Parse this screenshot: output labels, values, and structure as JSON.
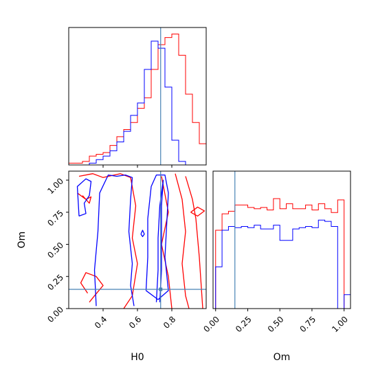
{
  "chart_data": {
    "type": "corner",
    "parameters": [
      "H0",
      "Om"
    ],
    "truth": {
      "H0": 0.735,
      "Om": 0.15
    },
    "colors": {
      "red": "#ff0000",
      "blue": "#0000ff",
      "truth": "#4682b4"
    },
    "panels": {
      "h0_hist": {
        "type": "step-histogram",
        "xlim": [
          0.2,
          1.0
        ],
        "edges": [
          0.2,
          0.24,
          0.28,
          0.32,
          0.36,
          0.4,
          0.44,
          0.48,
          0.52,
          0.56,
          0.6,
          0.64,
          0.68,
          0.72,
          0.76,
          0.8,
          0.84,
          0.88,
          0.92,
          0.96,
          1.0
        ],
        "series": [
          {
            "color": "red",
            "values": [
              1,
              1,
              2,
              5,
              6,
              7,
              11,
              16,
              20,
              24,
              32,
              38,
              54,
              68,
              72,
              74,
              62,
              40,
              24,
              12
            ]
          },
          {
            "color": "blue",
            "values": [
              0,
              0,
              0,
              1,
              3,
              5,
              8,
              13,
              19,
              28,
              35,
              54,
              70,
              66,
              44,
              14,
              2,
              0,
              0,
              0
            ]
          }
        ]
      },
      "om_hist": {
        "type": "step-histogram",
        "xlim": [
          -0.02,
          1.05
        ],
        "ticks": [
          "0.00",
          "0.25",
          "0.50",
          "0.75",
          "1.00"
        ],
        "edges": [
          0.0,
          0.05,
          0.1,
          0.15,
          0.2,
          0.25,
          0.3,
          0.35,
          0.4,
          0.45,
          0.5,
          0.55,
          0.6,
          0.65,
          0.7,
          0.75,
          0.8,
          0.85,
          0.9,
          0.95,
          1.0,
          1.05
        ],
        "series": [
          {
            "color": "red",
            "values": [
              62,
              75,
              77,
              82,
              82,
              80,
              79,
              80,
              78,
              87,
              79,
              83,
              79,
              79,
              82,
              78,
              83,
              79,
              76,
              86,
              0
            ]
          },
          {
            "color": "blue",
            "values": [
              33,
              62,
              65,
              64,
              65,
              64,
              66,
              63,
              63,
              66,
              54,
              54,
              63,
              64,
              65,
              64,
              70,
              69,
              65,
              0,
              11
            ]
          }
        ]
      },
      "joint": {
        "type": "contour",
        "xlim": [
          0.2,
          1.0
        ],
        "ylim": [
          0.0,
          1.07
        ],
        "xticks": [
          "0.4",
          "0.6",
          "0.8"
        ],
        "yticks": [
          "0.00",
          "0.25",
          "0.50",
          "0.75",
          "1.00"
        ],
        "contours": [
          {
            "color": "red",
            "points": [
              [
                0.26,
                1.03
              ],
              [
                0.34,
                1.05
              ],
              [
                0.4,
                1.02
              ],
              [
                0.5,
                1.05
              ],
              [
                0.56,
                1.02
              ],
              [
                0.59,
                0.8
              ],
              [
                0.57,
                0.55
              ],
              [
                0.6,
                0.35
              ],
              [
                0.57,
                0.1
              ],
              [
                0.52,
                0.0
              ]
            ]
          },
          {
            "color": "red",
            "points": [
              [
                0.25,
                0.9
              ],
              [
                0.3,
                0.85
              ],
              [
                0.33,
                0.87
              ],
              [
                0.32,
                0.82
              ],
              [
                0.28,
                0.88
              ]
            ]
          },
          {
            "color": "red",
            "points": [
              [
                0.31,
                0.12
              ],
              [
                0.27,
                0.2
              ],
              [
                0.3,
                0.28
              ],
              [
                0.36,
                0.25
              ],
              [
                0.4,
                0.18
              ],
              [
                0.35,
                0.1
              ],
              [
                0.32,
                0.05
              ]
            ]
          },
          {
            "color": "red",
            "points": [
              [
                0.74,
                1.03
              ],
              [
                0.78,
                0.75
              ],
              [
                0.74,
                0.5
              ],
              [
                0.78,
                0.25
              ],
              [
                0.8,
                0.0
              ]
            ]
          },
          {
            "color": "red",
            "points": [
              [
                0.82,
                1.05
              ],
              [
                0.86,
                0.85
              ],
              [
                0.88,
                0.6
              ],
              [
                0.86,
                0.35
              ],
              [
                0.88,
                0.1
              ],
              [
                0.9,
                0.0
              ]
            ]
          },
          {
            "color": "red",
            "points": [
              [
                0.88,
                1.03
              ],
              [
                0.92,
                0.85
              ],
              [
                0.94,
                0.7
              ],
              [
                0.96,
                0.4
              ],
              [
                0.97,
                0.2
              ],
              [
                0.98,
                0.0
              ]
            ]
          },
          {
            "color": "red",
            "points": [
              [
                0.91,
                0.75
              ],
              [
                0.95,
                0.72
              ],
              [
                0.99,
                0.76
              ],
              [
                0.95,
                0.79
              ],
              [
                0.91,
                0.75
              ]
            ]
          },
          {
            "color": "blue",
            "points": [
              [
                0.26,
                0.72
              ],
              [
                0.25,
                0.95
              ],
              [
                0.3,
                1.01
              ],
              [
                0.33,
                0.99
              ],
              [
                0.32,
                0.88
              ],
              [
                0.29,
                0.82
              ],
              [
                0.3,
                0.74
              ],
              [
                0.26,
                0.72
              ]
            ]
          },
          {
            "color": "blue",
            "points": [
              [
                0.36,
                0.02
              ],
              [
                0.35,
                0.3
              ],
              [
                0.37,
                0.6
              ],
              [
                0.38,
                0.9
              ],
              [
                0.43,
                1.04
              ],
              [
                0.48,
                1.03
              ],
              [
                0.53,
                1.04
              ],
              [
                0.57,
                1.02
              ],
              [
                0.56,
                0.85
              ],
              [
                0.55,
                0.6
              ],
              [
                0.57,
                0.35
              ],
              [
                0.56,
                0.18
              ],
              [
                0.58,
                0.02
              ]
            ]
          },
          {
            "color": "blue",
            "points": [
              [
                0.65,
                0.14
              ],
              [
                0.66,
                0.4
              ],
              [
                0.66,
                0.7
              ],
              [
                0.68,
                0.95
              ],
              [
                0.71,
                1.04
              ],
              [
                0.76,
                1.04
              ],
              [
                0.78,
                0.9
              ],
              [
                0.77,
                0.65
              ],
              [
                0.76,
                0.4
              ],
              [
                0.78,
                0.14
              ],
              [
                0.72,
                0.07
              ],
              [
                0.65,
                0.14
              ]
            ]
          },
          {
            "color": "blue",
            "points": [
              [
                0.71,
                0.05
              ],
              [
                0.72,
                0.3
              ],
              [
                0.72,
                0.55
              ],
              [
                0.73,
                0.8
              ],
              [
                0.75,
                1.0
              ],
              [
                0.74,
                0.8
              ],
              [
                0.74,
                0.55
              ],
              [
                0.74,
                0.3
              ],
              [
                0.73,
                0.05
              ]
            ]
          },
          {
            "color": "blue",
            "points": [
              [
                0.62,
                0.58
              ],
              [
                0.63,
                0.61
              ],
              [
                0.64,
                0.58
              ],
              [
                0.63,
                0.56
              ],
              [
                0.62,
                0.58
              ]
            ]
          }
        ]
      }
    }
  }
}
